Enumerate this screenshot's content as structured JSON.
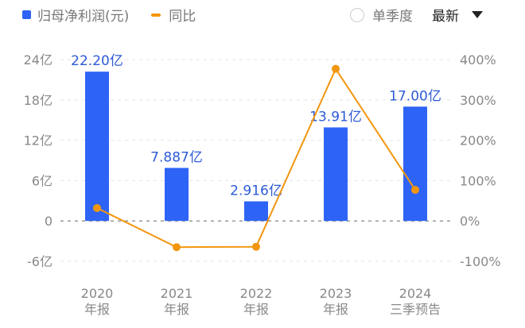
{
  "legend": {
    "bar_label": "归母净利润(元)",
    "line_label": "同比"
  },
  "controls": {
    "single_quarter_label": "单季度",
    "single_quarter_checked": false,
    "sort_label": "最新"
  },
  "colors": {
    "bar": "#2e64f5",
    "line": "#f2960f",
    "value_label": "#2d5bd6",
    "axis_text": "#888888"
  },
  "chart_data": {
    "type": "bar+line",
    "title": "",
    "categories": [
      "2020 年报",
      "2021 年报",
      "2022 年报",
      "2023 年报",
      "2024 三季预告"
    ],
    "x_tick_labels": [
      {
        "year": "2020",
        "period": "年报"
      },
      {
        "year": "2021",
        "period": "年报"
      },
      {
        "year": "2022",
        "period": "年报"
      },
      {
        "year": "2023",
        "period": "年报"
      },
      {
        "year": "2024",
        "period": "三季预告"
      }
    ],
    "series": [
      {
        "name": "归母净利润(元)",
        "type": "bar",
        "axis": "left",
        "unit": "亿",
        "values": [
          22.2,
          7.887,
          2.916,
          13.91,
          17.0
        ],
        "labels": [
          "22.20亿",
          "7.887亿",
          "2.916亿",
          "13.91亿",
          "17.00亿"
        ]
      },
      {
        "name": "同比",
        "type": "line",
        "axis": "right",
        "unit": "%",
        "values": [
          32,
          -65,
          -64,
          377,
          77
        ]
      }
    ],
    "y_left": {
      "ticks": [
        "24亿",
        "18亿",
        "12亿",
        "6亿",
        "0",
        "-6亿"
      ],
      "range": [
        -6,
        24
      ]
    },
    "y_right": {
      "ticks": [
        "400%",
        "300%",
        "200%",
        "100%",
        "0%",
        "-100%"
      ],
      "range": [
        -100,
        400
      ]
    },
    "grid": true,
    "legend_position": "top-left"
  }
}
